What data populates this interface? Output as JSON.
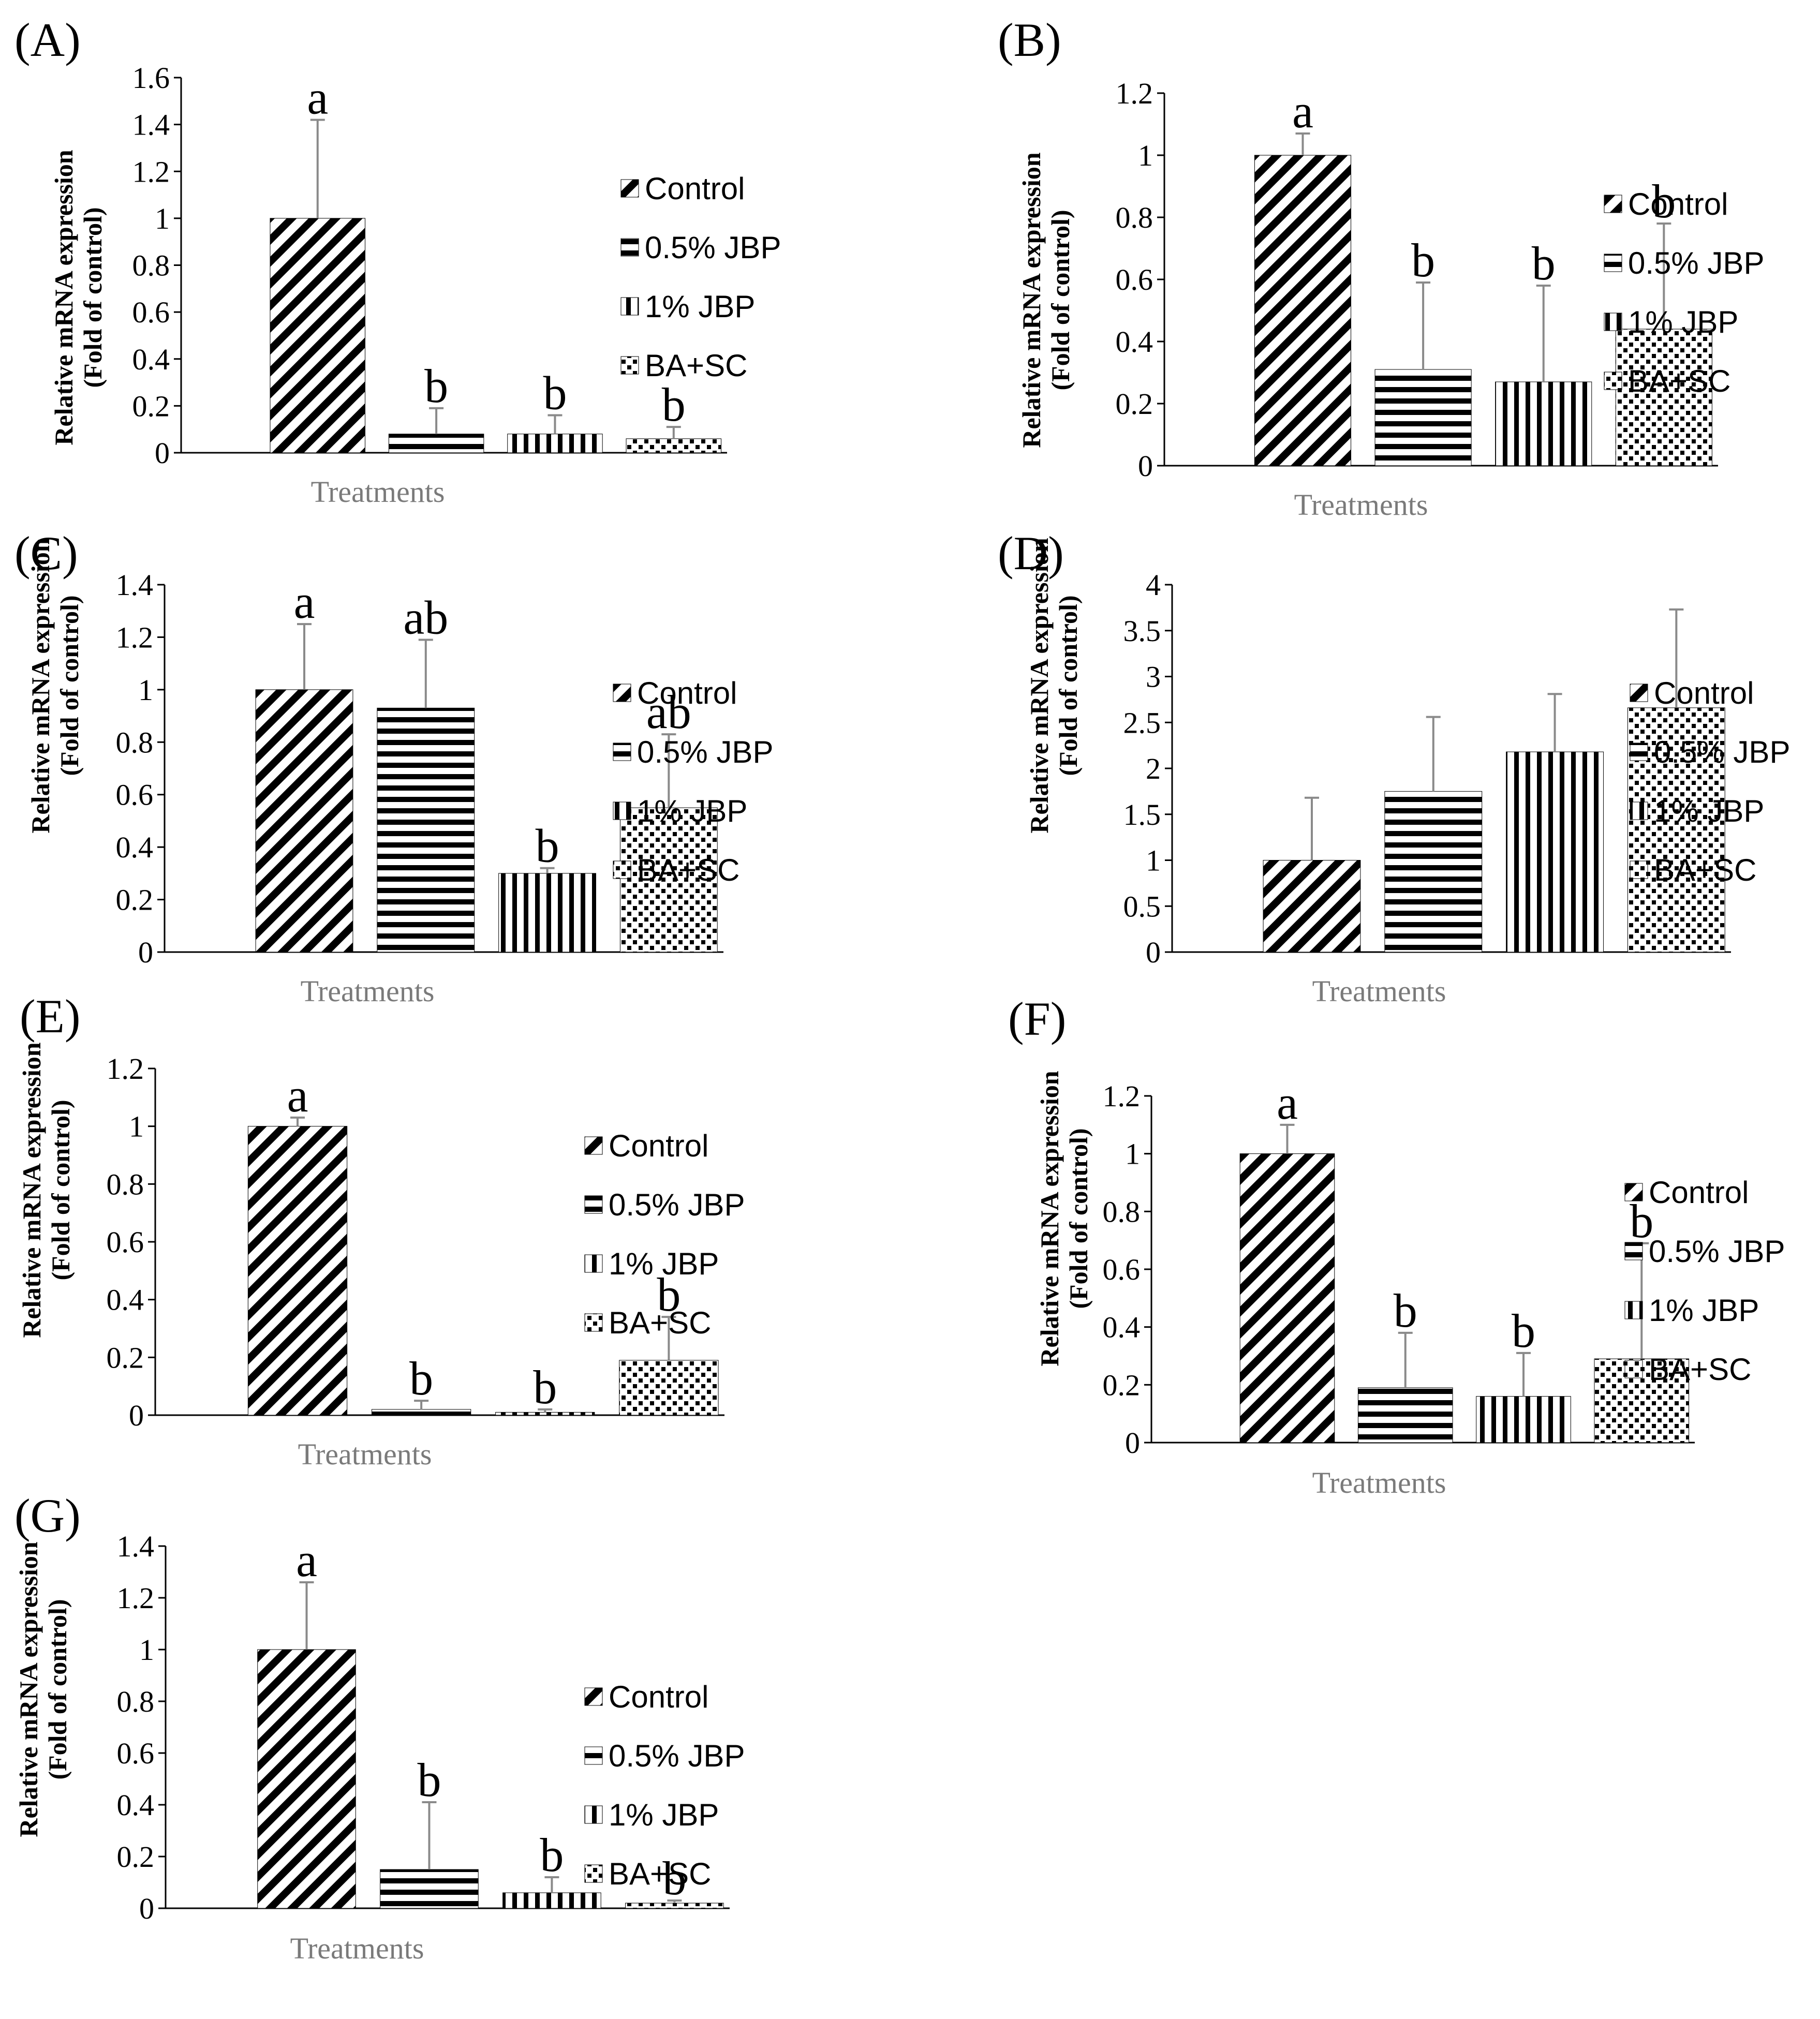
{
  "legend_items": [
    "Control",
    "0.5% JBP",
    "1% JBP",
    "BA+SC"
  ],
  "bar_patterns": [
    "diagonal-stripes",
    "horizontal-stripes",
    "vertical-stripes",
    "dots"
  ],
  "chart_data": [
    {
      "panel": "(A)",
      "type": "bar",
      "categories": [
        "Control",
        "0.5% JBP",
        "1% JBP",
        "BA+SC"
      ],
      "values": [
        1.0,
        0.08,
        0.08,
        0.06
      ],
      "error": [
        0.42,
        0.11,
        0.08,
        0.05
      ],
      "sig": [
        "a",
        "b",
        "b",
        "b"
      ],
      "ylim": [
        0,
        1.6
      ],
      "yticks": [
        "0",
        "0.2",
        "0.4",
        "0.6",
        "0.8",
        "1",
        "1.2",
        "1.4",
        "1.6"
      ],
      "xlabel": "Treatments",
      "ylabel": [
        "Relative mRNA expression",
        "(Fold of control)"
      ]
    },
    {
      "panel": "(B)",
      "type": "bar",
      "categories": [
        "Control",
        "0.5% JBP",
        "1% JBP",
        "BA+SC"
      ],
      "values": [
        1.0,
        0.31,
        0.27,
        0.44
      ],
      "error": [
        0.07,
        0.28,
        0.31,
        0.34
      ],
      "sig": [
        "a",
        "b",
        "b",
        "b"
      ],
      "ylim": [
        0,
        1.2
      ],
      "yticks": [
        "0",
        "0.2",
        "0.4",
        "0.6",
        "0.8",
        "1",
        "1.2"
      ],
      "xlabel": "Treatments",
      "ylabel": [
        "Relative mRNA expression",
        "(Fold of control)"
      ]
    },
    {
      "panel": "(C)",
      "type": "bar",
      "categories": [
        "Control",
        "0.5% JBP",
        "1% JBP",
        "BA+SC"
      ],
      "values": [
        1.0,
        0.93,
        0.3,
        0.55
      ],
      "error": [
        0.25,
        0.26,
        0.02,
        0.28
      ],
      "sig": [
        "a",
        "ab",
        "b",
        "ab"
      ],
      "ylim": [
        0,
        1.4
      ],
      "yticks": [
        "0",
        "0.2",
        "0.4",
        "0.6",
        "0.8",
        "1",
        "1.2",
        "1.4"
      ],
      "xlabel": "Treatments",
      "ylabel": [
        "Relative mRNA expression",
        "(Fold of control)"
      ]
    },
    {
      "panel": "(D)",
      "type": "bar",
      "categories": [
        "Control",
        "0.5% JBP",
        "1% JBP",
        "BA+SC"
      ],
      "values": [
        1.0,
        1.75,
        2.18,
        2.66
      ],
      "error": [
        0.68,
        0.81,
        0.63,
        1.07
      ],
      "sig": [
        "",
        "",
        "",
        ""
      ],
      "ylim": [
        0,
        4
      ],
      "yticks": [
        "0",
        "0.5",
        "1",
        "1.5",
        "2",
        "2.5",
        "3",
        "3.5",
        "4"
      ],
      "xlabel": "Treatments",
      "ylabel": [
        "Relative mRNA expression",
        "(Fold of control)"
      ]
    },
    {
      "panel": "(E)",
      "type": "bar",
      "categories": [
        "Control",
        "0.5% JBP",
        "1% JBP",
        "BA+SC"
      ],
      "values": [
        1.0,
        0.02,
        0.01,
        0.19
      ],
      "error": [
        0.03,
        0.03,
        0.01,
        0.15
      ],
      "sig": [
        "a",
        "b",
        "b",
        "b"
      ],
      "ylim": [
        0,
        1.2
      ],
      "yticks": [
        "0",
        "0.2",
        "0.4",
        "0.6",
        "0.8",
        "1",
        "1.2"
      ],
      "xlabel": "Treatments",
      "ylabel": [
        "Relative mRNA expression",
        "(Fold of control)"
      ]
    },
    {
      "panel": "(F)",
      "type": "bar",
      "categories": [
        "Control",
        "0.5% JBP",
        "1% JBP",
        "BA+SC"
      ],
      "values": [
        1.0,
        0.19,
        0.16,
        0.29
      ],
      "error": [
        0.1,
        0.19,
        0.15,
        0.4
      ],
      "sig": [
        "a",
        "b",
        "b",
        "b"
      ],
      "ylim": [
        0,
        1.2
      ],
      "yticks": [
        "0",
        "0.2",
        "0.4",
        "0.6",
        "0.8",
        "1",
        "1.2"
      ],
      "xlabel": "Treatments",
      "ylabel": [
        "Relative mRNA expression",
        "(Fold of control)"
      ]
    },
    {
      "panel": "(G)",
      "type": "bar",
      "categories": [
        "Control",
        "0.5% JBP",
        "1% JBP",
        "BA+SC"
      ],
      "values": [
        1.0,
        0.15,
        0.06,
        0.02
      ],
      "error": [
        0.26,
        0.26,
        0.06,
        0.01
      ],
      "sig": [
        "a",
        "b",
        "b",
        "b"
      ],
      "ylim": [
        0,
        1.4
      ],
      "yticks": [
        "0",
        "0.2",
        "0.4",
        "0.6",
        "0.8",
        "1",
        "1.2",
        "1.4"
      ],
      "xlabel": "Treatments",
      "ylabel": [
        "Relative mRNA expression",
        "(Fold of control)"
      ]
    }
  ]
}
